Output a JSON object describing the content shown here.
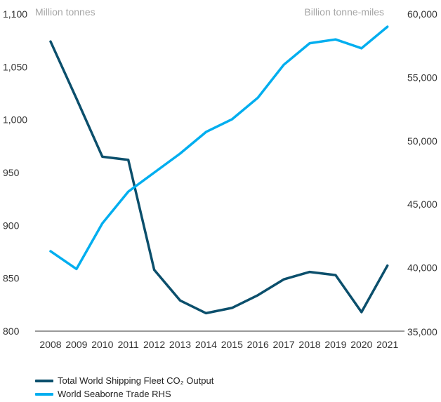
{
  "chart_data": {
    "type": "line",
    "categories": [
      "2008",
      "2009",
      "2010",
      "2011",
      "2012",
      "2013",
      "2014",
      "2015",
      "2016",
      "2017",
      "2018",
      "2019",
      "2020",
      "2021"
    ],
    "left_axis": {
      "unit_label": "Million tonnes",
      "ylim": [
        800,
        1100
      ],
      "ticks": [
        "1,100",
        "1,050",
        "1,000",
        "950",
        "900",
        "850",
        "800"
      ]
    },
    "right_axis": {
      "unit_label": "Billion tonne-miles",
      "ylim": [
        35000,
        60000
      ],
      "ticks": [
        "60,000",
        "55,000",
        "50,000",
        "45,000",
        "40,000",
        "35,000"
      ]
    },
    "series": [
      {
        "name": "Total World Shipping Fleet CO₂ Output",
        "axis": "left",
        "color": "#0b4f6c",
        "values": [
          1074,
          1020,
          965,
          962,
          858,
          829,
          817,
          822,
          834,
          849,
          856,
          853,
          818,
          862
        ]
      },
      {
        "name": "World Seaborne Trade RHS",
        "axis": "right",
        "color": "#00aeef",
        "values": [
          41300,
          39900,
          43500,
          46000,
          47500,
          49000,
          50700,
          51700,
          53400,
          56000,
          57700,
          58000,
          57300,
          59000
        ]
      }
    ],
    "grid": false,
    "legend_position": "bottom-left"
  }
}
